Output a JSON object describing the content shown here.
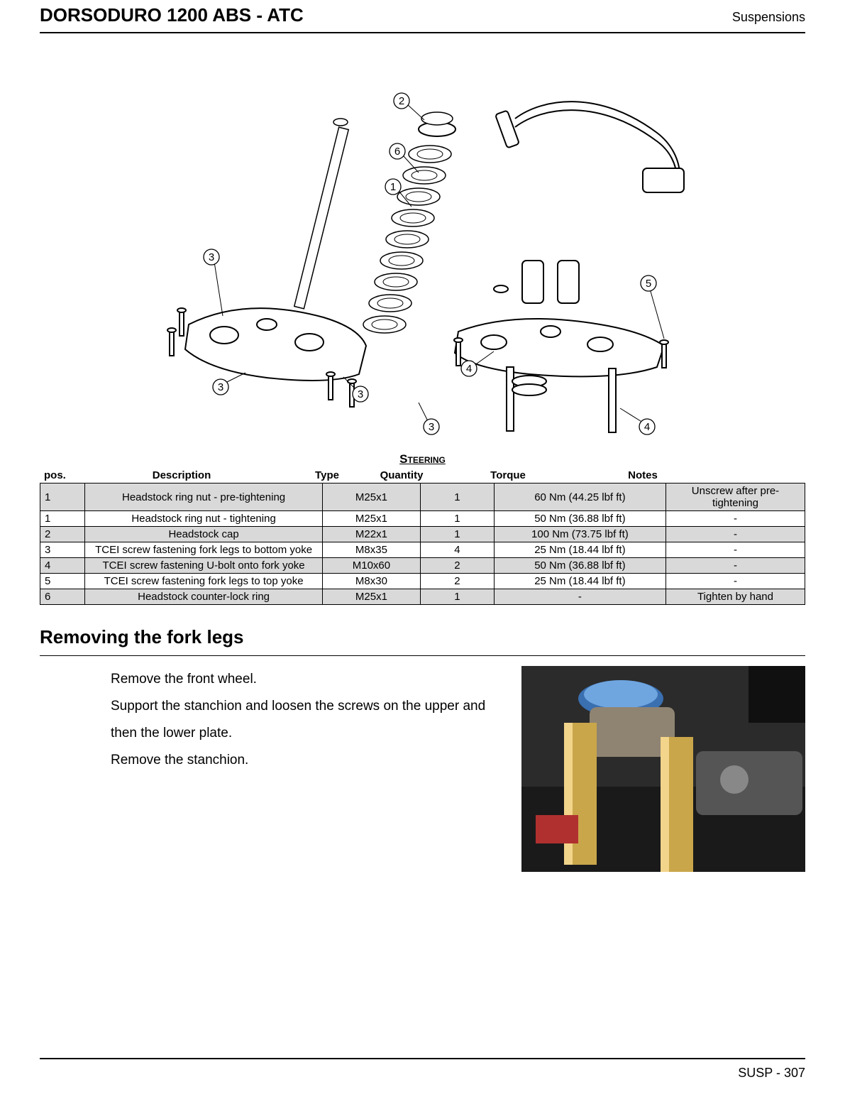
{
  "header": {
    "title": "DORSODURO 1200 ABS - ATC",
    "section": "Suspensions"
  },
  "diagram": {
    "callouts": [
      "1",
      "2",
      "3",
      "4",
      "5",
      "6"
    ]
  },
  "table": {
    "title": "Steering",
    "columns": [
      "pos.",
      "Description",
      "Type",
      "Quantity",
      "Torque",
      "Notes"
    ],
    "rows": [
      {
        "shaded": true,
        "cells": [
          "1",
          "Headstock ring nut - pre-tightening",
          "M25x1",
          "1",
          "60 Nm (44.25 lbf ft)",
          "Unscrew after pre-tightening"
        ]
      },
      {
        "shaded": false,
        "cells": [
          "1",
          "Headstock ring nut - tightening",
          "M25x1",
          "1",
          "50 Nm (36.88 lbf ft)",
          "-"
        ]
      },
      {
        "shaded": true,
        "cells": [
          "2",
          "Headstock cap",
          "M22x1",
          "1",
          "100 Nm (73.75 lbf ft)",
          "-"
        ]
      },
      {
        "shaded": false,
        "cells": [
          "3",
          "TCEI screw fastening fork legs to bottom yoke",
          "M8x35",
          "4",
          "25 Nm (18.44 lbf ft)",
          "-"
        ]
      },
      {
        "shaded": true,
        "cells": [
          "4",
          "TCEI screw fastening U-bolt onto fork yoke",
          "M10x60",
          "2",
          "50 Nm (36.88 lbf ft)",
          "-"
        ]
      },
      {
        "shaded": false,
        "cells": [
          "5",
          "TCEI screw fastening fork legs to top yoke",
          "M8x30",
          "2",
          "25 Nm (18.44 lbf ft)",
          "-"
        ]
      },
      {
        "shaded": true,
        "cells": [
          "6",
          "Headstock counter-lock ring",
          "M25x1",
          "1",
          "-",
          "Tighten by hand"
        ]
      }
    ]
  },
  "subheading": "Removing the fork legs",
  "instructions": [
    "Remove the front wheel.",
    "Support the stanchion and loosen the screws on the upper and then the lower plate.",
    "Remove the stanchion."
  ],
  "footer": {
    "label": "SUSP - 307"
  }
}
